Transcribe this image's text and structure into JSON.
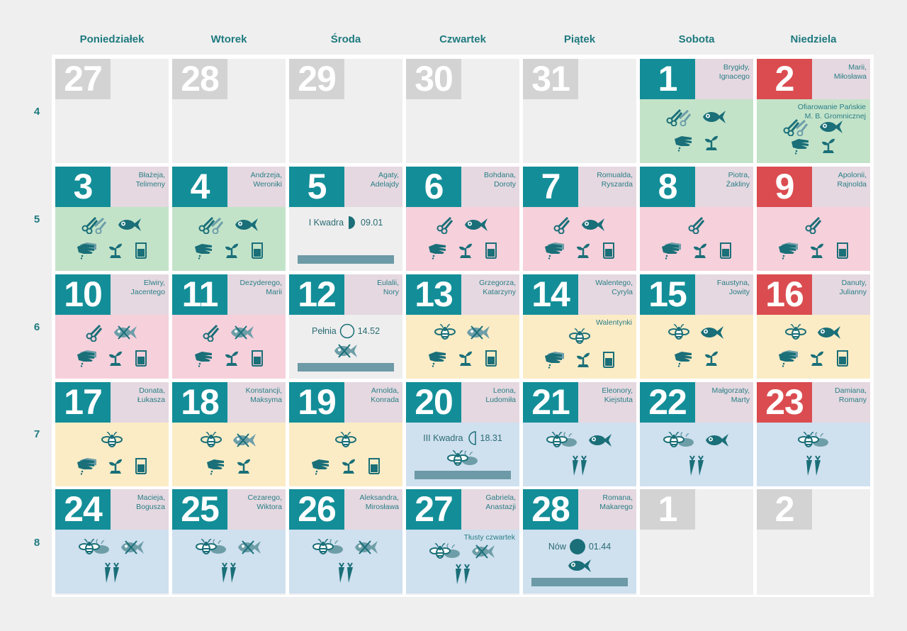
{
  "colors": {
    "teal": "#138e98",
    "sunday": "#da4c50",
    "other_month": "#d3d3d3",
    "names_bg": "#e5d8e0",
    "green": "#c3e3c9",
    "pink": "#f6d0db",
    "yellow": "#fbecc6",
    "blue": "#cfe0ef",
    "icon": "#1a6f78"
  },
  "weekdays": [
    "Poniedziałek",
    "Wtorek",
    "Środa",
    "Czwartek",
    "Piątek",
    "Sobota",
    "Niedziela"
  ],
  "weeks": [
    "4",
    "5",
    "6",
    "7",
    "8"
  ],
  "days": [
    {
      "n": "27",
      "kind": "other"
    },
    {
      "n": "28",
      "kind": "other"
    },
    {
      "n": "29",
      "kind": "other"
    },
    {
      "n": "30",
      "kind": "other"
    },
    {
      "n": "31",
      "kind": "other"
    },
    {
      "n": "1",
      "kind": "normal",
      "names": "Brygidy, Ignacego",
      "bg": "green",
      "top": [
        "scissors2",
        "fish"
      ],
      "bottom": [
        "hand",
        "sprout"
      ]
    },
    {
      "n": "2",
      "kind": "sun",
      "names": "Marii, Miłosława",
      "bg": "green",
      "holiday": "Ofiarowanie Pańskie M. B. Gromnicznej",
      "top": [
        "scissors2",
        "fish"
      ],
      "bottom": [
        "hand",
        "sprout"
      ]
    },
    {
      "n": "3",
      "kind": "normal",
      "names": "Błażeja, Telimeny",
      "bg": "green",
      "top": [
        "scissors2",
        "fish"
      ],
      "bottom": [
        "hand2",
        "sprout",
        "jar"
      ]
    },
    {
      "n": "4",
      "kind": "normal",
      "names": "Andrzeja, Weroniki",
      "bg": "green",
      "top": [
        "scissors2",
        "fish"
      ],
      "bottom": [
        "hand",
        "sprout",
        "jar"
      ]
    },
    {
      "n": "5",
      "kind": "normal",
      "names": "Agaty, Adelajdy",
      "bg": "grey",
      "moon": {
        "label": "I Kwadra",
        "phase": "first",
        "time": "09.01"
      },
      "bar": true
    },
    {
      "n": "6",
      "kind": "normal",
      "names": "Bohdana, Doroty",
      "bg": "pink",
      "top": [
        "scissors",
        "fish"
      ],
      "bottom": [
        "hand",
        "sprout",
        "jar"
      ]
    },
    {
      "n": "7",
      "kind": "normal",
      "names": "Romualda, Ryszarda",
      "bg": "pink",
      "top": [
        "scissors",
        "fish"
      ],
      "bottom": [
        "hand2",
        "sprout",
        "jar"
      ]
    },
    {
      "n": "8",
      "kind": "normal",
      "names": "Piotra, Żakliny",
      "bg": "pink",
      "top": [
        "scissors"
      ],
      "bottom": [
        "hand2",
        "sprout",
        "jar"
      ]
    },
    {
      "n": "9",
      "kind": "sun",
      "names": "Apolonii, Rajnolda",
      "bg": "pink",
      "top": [
        "scissors"
      ],
      "bottom": [
        "hand2",
        "sprout",
        "jar"
      ]
    },
    {
      "n": "10",
      "kind": "normal",
      "names": "Elwiry, Jacentego",
      "bg": "pink",
      "top": [
        "scissors",
        "nofish"
      ],
      "bottom": [
        "hand2",
        "sprout",
        "jar"
      ]
    },
    {
      "n": "11",
      "kind": "normal",
      "names": "Dezyderego, Marii",
      "bg": "pink",
      "top": [
        "scissors",
        "nofish"
      ],
      "bottom": [
        "hand",
        "sprout",
        "jar"
      ]
    },
    {
      "n": "12",
      "kind": "normal",
      "names": "Eulalii, Nory",
      "bg": "grey",
      "moon": {
        "label": "Pełnia",
        "phase": "full",
        "time": "14.52"
      },
      "mid": [
        "nofish"
      ],
      "bar": true
    },
    {
      "n": "13",
      "kind": "normal",
      "names": "Grzegorza, Katarzyny",
      "bg": "yellow",
      "top": [
        "bee",
        "nofish"
      ],
      "bottom": [
        "hand",
        "sprout",
        "jar"
      ]
    },
    {
      "n": "14",
      "kind": "normal",
      "names": "Walentego, Cyryla",
      "bg": "yellow",
      "holiday": "Walentynki",
      "top": [
        "bee"
      ],
      "bottom": [
        "hand2",
        "sprout",
        "jar"
      ]
    },
    {
      "n": "15",
      "kind": "normal",
      "names": "Faustyna, Jowity",
      "bg": "yellow",
      "top": [
        "bee",
        "fish"
      ],
      "bottom": [
        "hand",
        "sprout"
      ]
    },
    {
      "n": "16",
      "kind": "sun",
      "names": "Danuty, Julianny",
      "bg": "yellow",
      "top": [
        "bee",
        "fish"
      ],
      "bottom": [
        "hand2",
        "sprout",
        "jar"
      ]
    },
    {
      "n": "17",
      "kind": "normal",
      "names": "Donata, Łukasza",
      "bg": "yellow",
      "top": [
        "bee"
      ],
      "bottom": [
        "hand2",
        "sprout",
        "jar"
      ]
    },
    {
      "n": "18",
      "kind": "normal",
      "names": "Konstancji, Maksyma",
      "bg": "yellow",
      "top": [
        "bee",
        "nofish"
      ],
      "bottom": [
        "hand",
        "sprout"
      ]
    },
    {
      "n": "19",
      "kind": "normal",
      "names": "Arnolda, Konrada",
      "bg": "yellow",
      "top": [
        "bee"
      ],
      "bottom": [
        "hand",
        "sprout",
        "jar"
      ]
    },
    {
      "n": "20",
      "kind": "normal",
      "names": "Leona, Ludomiła",
      "bg": "blue",
      "moon": {
        "label": "III Kwadra",
        "phase": "last",
        "time": "18.31"
      },
      "mid": [
        "bee2"
      ],
      "bar": true
    },
    {
      "n": "21",
      "kind": "normal",
      "names": "Eleonory, Kiejstuta",
      "bg": "blue",
      "top": [
        "bee2",
        "fish"
      ],
      "bottom": [
        "carrots"
      ]
    },
    {
      "n": "22",
      "kind": "normal",
      "names": "Małgorzaty, Marty",
      "bg": "blue",
      "top": [
        "bee2",
        "fish"
      ],
      "bottom": [
        "carrots"
      ]
    },
    {
      "n": "23",
      "kind": "sun",
      "names": "Damiana, Romany",
      "bg": "blue",
      "top": [
        "bee2"
      ],
      "bottom": [
        "carrots"
      ]
    },
    {
      "n": "24",
      "kind": "normal",
      "names": "Macieja, Bogusza",
      "bg": "blue",
      "top": [
        "bee2",
        "nofish"
      ],
      "bottom": [
        "carrots"
      ]
    },
    {
      "n": "25",
      "kind": "normal",
      "names": "Cezarego, Wiktora",
      "bg": "blue",
      "top": [
        "bee2",
        "nofish"
      ],
      "bottom": [
        "carrots"
      ]
    },
    {
      "n": "26",
      "kind": "normal",
      "names": "Aleksandra, Mirosława",
      "bg": "blue",
      "top": [
        "bee2",
        "nofish"
      ],
      "bottom": [
        "carrots"
      ]
    },
    {
      "n": "27",
      "kind": "normal",
      "names": "Gabriela, Anastazji",
      "bg": "blue",
      "holiday": "Tłusty czwartek",
      "top": [
        "bee2",
        "nofish"
      ],
      "bottom": [
        "carrots"
      ]
    },
    {
      "n": "28",
      "kind": "normal",
      "names": "Romana, Makarego",
      "bg": "blue",
      "moon": {
        "label": "Nów",
        "phase": "new",
        "time": "01.44"
      },
      "mid": [
        "fish"
      ],
      "bar": true
    },
    {
      "n": "1",
      "kind": "other"
    },
    {
      "n": "2",
      "kind": "other"
    }
  ]
}
